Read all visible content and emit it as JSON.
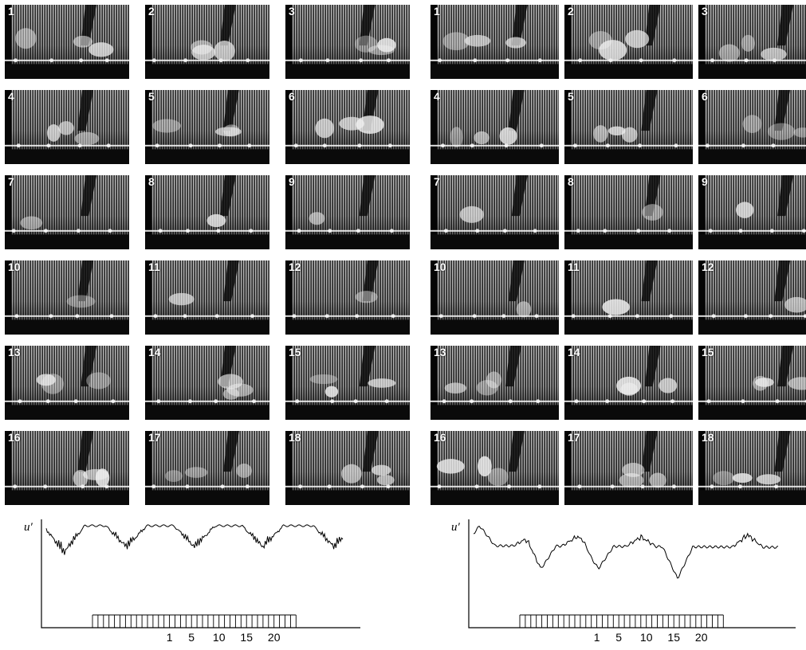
{
  "panels": [
    {
      "id": "left",
      "frames": [
        "1",
        "2",
        "3",
        "4",
        "5",
        "6",
        "7",
        "8",
        "9",
        "10",
        "11",
        "12",
        "13",
        "14",
        "15",
        "16",
        "17",
        "18"
      ],
      "trace": {
        "ylabel": "u′",
        "tick_labels": [
          "1",
          "5",
          "10",
          "15",
          "20"
        ]
      }
    },
    {
      "id": "right",
      "frames": [
        "1",
        "2",
        "3",
        "4",
        "5",
        "6",
        "7",
        "8",
        "9",
        "10",
        "11",
        "12",
        "13",
        "14",
        "15",
        "16",
        "17",
        "18"
      ],
      "trace": {
        "ylabel": "u′",
        "tick_labels": [
          "1",
          "5",
          "10",
          "15",
          "20"
        ]
      }
    }
  ],
  "colors": {
    "frame_dark": "#141414",
    "streak_light": "#e8e8e8",
    "trace": "#000000"
  }
}
